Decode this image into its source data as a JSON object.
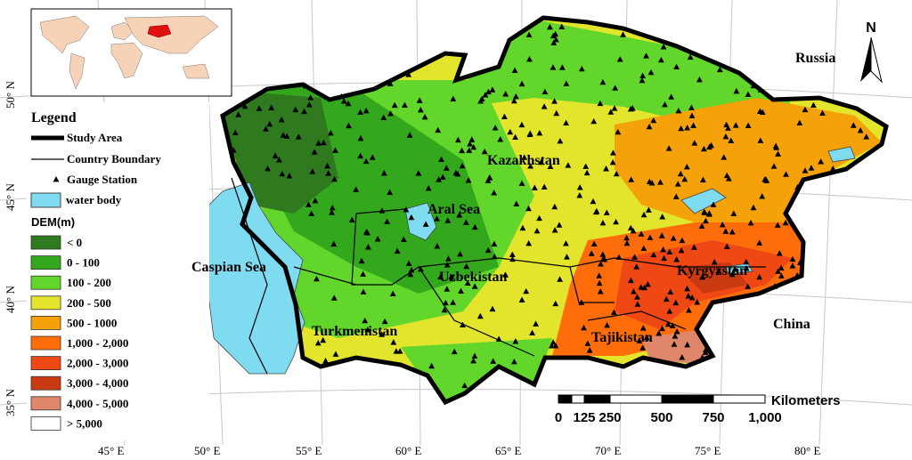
{
  "legend": {
    "title": "Legend",
    "items": [
      "Study Area",
      "Country Boundary",
      "Gauge Station",
      "water body"
    ],
    "dem_title": "DEM(m)",
    "dem_classes": [
      {
        "label": "< 0",
        "color": "#2f7a1f"
      },
      {
        "label": "0 - 100",
        "color": "#33a81c"
      },
      {
        "label": "100 - 200",
        "color": "#62d62b"
      },
      {
        "label": "200 - 500",
        "color": "#e3e52c"
      },
      {
        "label": "500 - 1000",
        "color": "#f5a10a"
      },
      {
        "label": "1,000 - 2,000",
        "color": "#ff6d0a"
      },
      {
        "label": "2,000 - 3,000",
        "color": "#ef4814"
      },
      {
        "label": "3,000 - 4,000",
        "color": "#c93a12"
      },
      {
        "label": "4,000 - 5,000",
        "color": "#e0866a"
      },
      {
        "label": "> 5,000",
        "color": "#ffffff"
      }
    ]
  },
  "map": {
    "place_labels": [
      "Russia",
      "Kazakhstan",
      "Aral Sea",
      "Caspian Sea",
      "Uzbekistan",
      "Turkmenistan",
      "Kyrgyzstan",
      "Tajikistan",
      "China"
    ],
    "longitudes": [
      "45°  E",
      "50°  E",
      "55°  E",
      "60°  E",
      "65°  E",
      "70°  E",
      "75°  E",
      "80°  E"
    ],
    "latitudes": [
      "35°  N",
      "40°  N",
      "45°  N",
      "50°  N"
    ],
    "north": "N"
  },
  "scale_bar": {
    "unit": "Kilometers",
    "labels": [
      "0",
      "125",
      "250",
      "500",
      "750",
      "1,000"
    ]
  }
}
